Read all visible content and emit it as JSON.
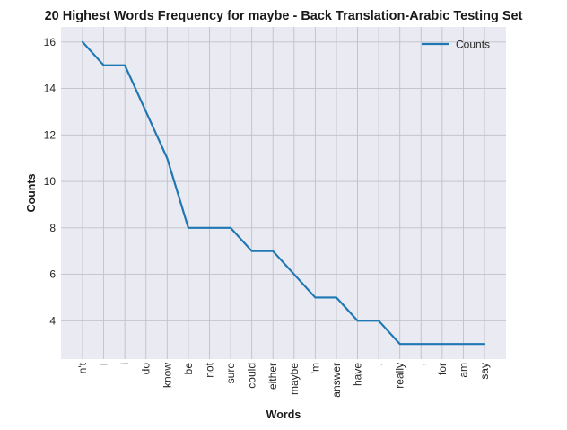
{
  "chart_data": {
    "type": "line",
    "title": "20 Highest Words Frequency for maybe - Back Translation-Arabic Testing Set",
    "xlabel": "Words",
    "ylabel": "Counts",
    "categories": [
      "n't",
      "I",
      "i",
      "do",
      "know",
      "be",
      "not",
      "sure",
      "could",
      "either",
      "maybe",
      "'m",
      "answer",
      "have",
      ".",
      "really",
      ",",
      "for",
      "am",
      "say"
    ],
    "series": [
      {
        "name": "Counts",
        "values": [
          16,
          15,
          15,
          13,
          11,
          8,
          8,
          8,
          7,
          7,
          6,
          5,
          5,
          4,
          4,
          3,
          3,
          3,
          3,
          3
        ],
        "color": "#1f77b4"
      }
    ],
    "ylim": [
      2.35,
      16.65
    ],
    "yticks": [
      4,
      6,
      8,
      10,
      12,
      14,
      16
    ],
    "grid": true,
    "legend_position": "top-right",
    "background_color": "#eaeaf2",
    "grid_color": "#c0c0c8"
  }
}
